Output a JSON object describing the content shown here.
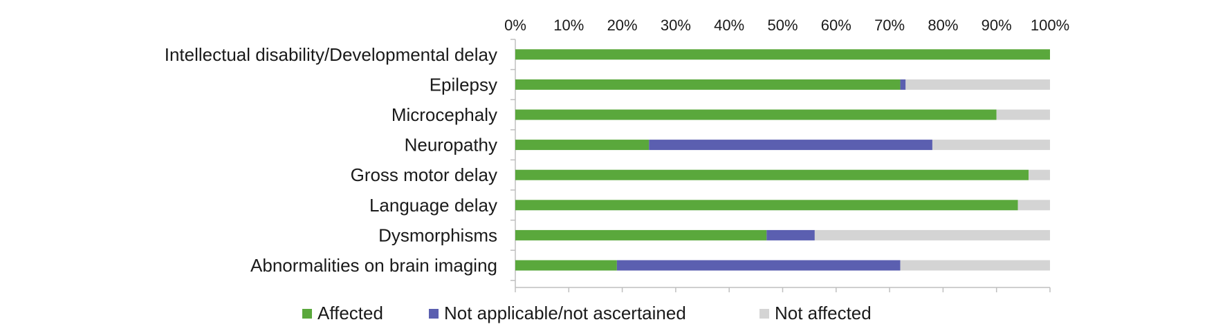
{
  "chart_data": {
    "type": "bar",
    "orientation": "horizontal",
    "stacked": "percent",
    "x_axis_position": "top",
    "xlim": [
      0,
      100
    ],
    "x_ticks": [
      "0%",
      "10%",
      "20%",
      "30%",
      "40%",
      "50%",
      "60%",
      "70%",
      "80%",
      "90%",
      "100%"
    ],
    "grid": false,
    "legend_position": "bottom",
    "categories": [
      "Intellectual disability/Developmental delay",
      "Epilepsy",
      "Microcephaly",
      "Neuropathy",
      "Gross motor delay",
      "Language delay",
      "Dysmorphisms",
      "Abnormalities on brain imaging"
    ],
    "series": [
      {
        "name": "Affected",
        "color": "#5aa83c",
        "values": [
          100,
          72,
          90,
          25,
          96,
          94,
          47,
          19
        ]
      },
      {
        "name": "Not applicable/not ascertained",
        "color": "#5b5fb0",
        "values": [
          0,
          1,
          0,
          53,
          0,
          0,
          9,
          53
        ]
      },
      {
        "name": "Not affected",
        "color": "#d4d4d4",
        "values": [
          0,
          27,
          10,
          22,
          4,
          6,
          44,
          28
        ]
      }
    ],
    "axis_color": "#bfbfbf"
  }
}
